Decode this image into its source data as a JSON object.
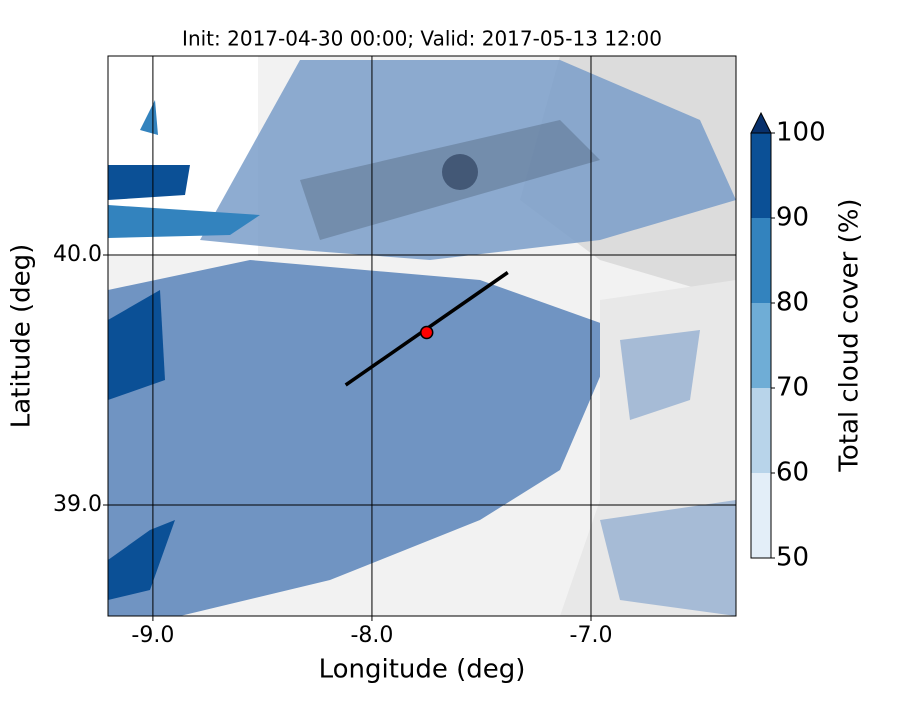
{
  "chart_data": {
    "type": "map",
    "title": "Init: 2017-04-30 00:00; Valid: 2017-05-13 12:00",
    "xlabel": "Longitude (deg)",
    "ylabel": "Latitude (deg)",
    "xlim": [
      -9.205,
      -6.338
    ],
    "ylim": [
      38.556,
      40.796
    ],
    "xticks": [
      {
        "value": -9,
        "label": "-9.0"
      },
      {
        "value": -8,
        "label": "-8.0"
      },
      {
        "value": -7,
        "label": "-7.0"
      }
    ],
    "yticks": [
      {
        "value": 39,
        "label": "39.0"
      },
      {
        "value": 40,
        "label": "40.0"
      }
    ],
    "grid": true,
    "cross_section": {
      "color": "#000000",
      "lon": [
        -8.12,
        -7.38
      ],
      "lat": [
        39.48,
        39.93
      ]
    },
    "point": {
      "color": "#ff0000",
      "lon": [
        -7.75
      ],
      "lat": [
        39.69
      ]
    },
    "colorbar": {
      "label": "Total cloud cover (%)",
      "ticks": [
        50,
        60,
        70,
        80,
        90,
        100
      ],
      "colors": [
        "#e3eef8",
        "#b8d4ea",
        "#6fadd6",
        "#3383be",
        "#0b5096"
      ],
      "extend_color": "#08306b"
    }
  }
}
